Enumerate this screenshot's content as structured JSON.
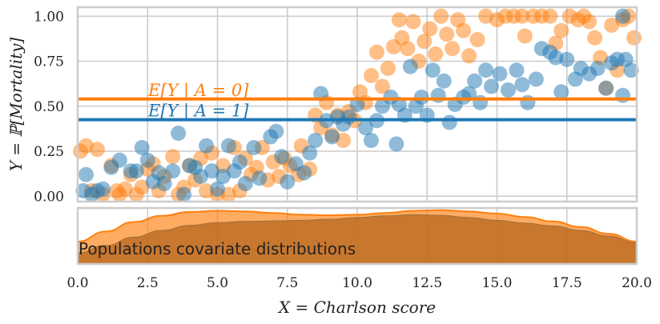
{
  "chart_data": [
    {
      "type": "scatter",
      "xlabel": "X = Charlson score",
      "ylabel": "Y = ℙ[Mortality]",
      "xlim": [
        0,
        20
      ],
      "ylim": [
        -0.03,
        1.05
      ],
      "xticks": [
        "0.0",
        "2.5",
        "5.0",
        "7.5",
        "10.0",
        "12.5",
        "15.0",
        "17.5",
        "20.0"
      ],
      "yticks": [
        "0.00",
        "0.25",
        "0.50",
        "0.75",
        "1.00"
      ],
      "grid": true,
      "series": [
        {
          "name": "A = 0",
          "color": "#ff7f0e",
          "points": [
            [
              0.1,
              0.25
            ],
            [
              0.3,
              0.28
            ],
            [
              0.5,
              0.03
            ],
            [
              0.7,
              0.26
            ],
            [
              0.9,
              0.01
            ],
            [
              1.2,
              0.17
            ],
            [
              1.4,
              0.03
            ],
            [
              1.5,
              0.01
            ],
            [
              1.7,
              0.04
            ],
            [
              1.9,
              0.12
            ],
            [
              2.1,
              0.01
            ],
            [
              2.3,
              0.05
            ],
            [
              2.5,
              0.15
            ],
            [
              2.7,
              0.18
            ],
            [
              2.9,
              0.03
            ],
            [
              3.1,
              0.11
            ],
            [
              3.4,
              0.22
            ],
            [
              3.6,
              0.01
            ],
            [
              3.8,
              0.05
            ],
            [
              4.0,
              0.17
            ],
            [
              4.2,
              0.09
            ],
            [
              4.4,
              0.21
            ],
            [
              4.6,
              0.03
            ],
            [
              4.8,
              0.24
            ],
            [
              5.0,
              0.01
            ],
            [
              5.2,
              0.17
            ],
            [
              5.4,
              0.01
            ],
            [
              5.6,
              0.27
            ],
            [
              5.8,
              0.03
            ],
            [
              6.0,
              0.21
            ],
            [
              6.2,
              0.12
            ],
            [
              6.4,
              0.16
            ],
            [
              6.6,
              0.27
            ],
            [
              6.8,
              0.09
            ],
            [
              7.0,
              0.19
            ],
            [
              7.2,
              0.11
            ],
            [
              7.4,
              0.21
            ],
            [
              7.6,
              0.17
            ],
            [
              7.9,
              0.12
            ],
            [
              8.0,
              0.28
            ],
            [
              8.3,
              0.15
            ],
            [
              8.5,
              0.45
            ],
            [
              8.7,
              0.38
            ],
            [
              8.9,
              0.52
            ],
            [
              9.1,
              0.34
            ],
            [
              9.3,
              0.45
            ],
            [
              9.5,
              0.31
            ],
            [
              9.7,
              0.47
            ],
            [
              9.9,
              0.42
            ],
            [
              10.1,
              0.58
            ],
            [
              10.3,
              0.52
            ],
            [
              10.5,
              0.67
            ],
            [
              10.7,
              0.8
            ],
            [
              10.9,
              0.61
            ],
            [
              11.1,
              0.71
            ],
            [
              11.3,
              0.83
            ],
            [
              11.5,
              0.98
            ],
            [
              11.6,
              0.88
            ],
            [
              11.8,
              0.82
            ],
            [
              12.0,
              0.97
            ],
            [
              12.2,
              0.75
            ],
            [
              12.4,
              0.86
            ],
            [
              12.6,
              0.93
            ],
            [
              12.8,
              0.79
            ],
            [
              13.0,
              1.0
            ],
            [
              13.2,
              0.9
            ],
            [
              13.4,
              0.82
            ],
            [
              13.6,
              0.98
            ],
            [
              13.8,
              0.92
            ],
            [
              14.0,
              0.78
            ],
            [
              14.3,
              0.87
            ],
            [
              14.6,
              1.0
            ],
            [
              15.0,
              0.98
            ],
            [
              15.3,
              1.0
            ],
            [
              15.6,
              1.0
            ],
            [
              15.9,
              1.0
            ],
            [
              16.0,
              0.89
            ],
            [
              16.3,
              1.0
            ],
            [
              16.6,
              1.0
            ],
            [
              16.9,
              1.0
            ],
            [
              17.1,
              0.85
            ],
            [
              17.3,
              0.92
            ],
            [
              17.6,
              1.0
            ],
            [
              17.9,
              0.98
            ],
            [
              18.1,
              1.0
            ],
            [
              18.3,
              0.97
            ],
            [
              18.5,
              0.88
            ],
            [
              18.7,
              0.77
            ],
            [
              18.9,
              0.6
            ],
            [
              19.1,
              0.95
            ],
            [
              19.3,
              0.7
            ],
            [
              19.5,
              0.98
            ],
            [
              19.7,
              1.0
            ],
            [
              19.9,
              0.88
            ]
          ]
        },
        {
          "name": "A = 1",
          "color": "#1f77b4",
          "points": [
            [
              0.2,
              0.03
            ],
            [
              0.3,
              0.12
            ],
            [
              0.5,
              0.01
            ],
            [
              0.7,
              0.03
            ],
            [
              0.9,
              0.04
            ],
            [
              1.2,
              0.16
            ],
            [
              1.5,
              0.2
            ],
            [
              1.9,
              0.14
            ],
            [
              2.1,
              0.14
            ],
            [
              2.3,
              0.27
            ],
            [
              2.5,
              0.2
            ],
            [
              2.7,
              0.08
            ],
            [
              2.9,
              0.13
            ],
            [
              3.1,
              0.07
            ],
            [
              3.4,
              0.14
            ],
            [
              3.6,
              0.35
            ],
            [
              3.8,
              0.01
            ],
            [
              4.0,
              0.17
            ],
            [
              4.2,
              0.16
            ],
            [
              4.4,
              0.11
            ],
            [
              4.6,
              0.28
            ],
            [
              4.8,
              0.14
            ],
            [
              5.0,
              0.04
            ],
            [
              5.2,
              0.11
            ],
            [
              5.4,
              0.28
            ],
            [
              5.6,
              0.14
            ],
            [
              5.8,
              0.19
            ],
            [
              6.0,
              0.07
            ],
            [
              6.3,
              0.27
            ],
            [
              6.5,
              0.1
            ],
            [
              6.9,
              0.33
            ],
            [
              7.1,
              0.36
            ],
            [
              7.3,
              0.22
            ],
            [
              7.5,
              0.08
            ],
            [
              7.8,
              0.18
            ],
            [
              8.1,
              0.13
            ],
            [
              8.3,
              0.24
            ],
            [
              8.5,
              0.31
            ],
            [
              8.7,
              0.57
            ],
            [
              8.9,
              0.42
            ],
            [
              9.1,
              0.33
            ],
            [
              9.3,
              0.44
            ],
            [
              9.5,
              0.4
            ],
            [
              9.7,
              0.44
            ],
            [
              10.0,
              0.51
            ],
            [
              10.3,
              0.38
            ],
            [
              10.5,
              0.31
            ],
            [
              10.7,
              0.42
            ],
            [
              10.9,
              0.5
            ],
            [
              11.2,
              0.55
            ],
            [
              11.4,
              0.29
            ],
            [
              11.5,
              0.51
            ],
            [
              11.7,
              0.45
            ],
            [
              11.9,
              0.72
            ],
            [
              12.1,
              0.5
            ],
            [
              12.3,
              0.55
            ],
            [
              12.5,
              0.45
            ],
            [
              12.7,
              0.7
            ],
            [
              12.9,
              0.56
            ],
            [
              13.1,
              0.64
            ],
            [
              13.3,
              0.41
            ],
            [
              13.5,
              0.51
            ],
            [
              13.8,
              0.55
            ],
            [
              14.0,
              0.57
            ],
            [
              14.2,
              0.64
            ],
            [
              14.4,
              0.52
            ],
            [
              14.6,
              0.7
            ],
            [
              14.8,
              0.61
            ],
            [
              15.1,
              0.68
            ],
            [
              15.4,
              0.59
            ],
            [
              15.7,
              0.7
            ],
            [
              15.9,
              0.62
            ],
            [
              16.1,
              0.52
            ],
            [
              16.4,
              0.65
            ],
            [
              16.6,
              0.82
            ],
            [
              16.9,
              0.8
            ],
            [
              17.1,
              0.77
            ],
            [
              17.3,
              0.58
            ],
            [
              17.5,
              0.76
            ],
            [
              17.8,
              0.65
            ],
            [
              18.0,
              0.71
            ],
            [
              18.3,
              0.68
            ],
            [
              18.6,
              0.71
            ],
            [
              18.9,
              0.6
            ],
            [
              19.1,
              0.74
            ],
            [
              19.3,
              0.76
            ],
            [
              19.5,
              0.56
            ],
            [
              19.6,
              0.76
            ],
            [
              19.8,
              0.7
            ],
            [
              19.5,
              1.0
            ]
          ]
        }
      ],
      "hlines": [
        {
          "label": "E[Y | A = 0]",
          "value": 0.54,
          "color": "#ff7f0e"
        },
        {
          "label": "E[Y | A = 1]",
          "value": 0.425,
          "color": "#1f77b4"
        }
      ]
    },
    {
      "type": "area",
      "label": "Populations covariate distributions",
      "xlim": [
        0,
        20
      ],
      "x": [
        0,
        1,
        2,
        3,
        4,
        5,
        6,
        7,
        8,
        9,
        10,
        11,
        12,
        13,
        14,
        15,
        16,
        17,
        18,
        19,
        20
      ],
      "series": [
        {
          "name": "A = 0",
          "color": "#ff7f0e",
          "values": [
            0.4,
            0.58,
            0.75,
            0.86,
            0.93,
            0.95,
            0.94,
            0.91,
            0.88,
            0.87,
            0.88,
            0.91,
            0.95,
            0.96,
            0.94,
            0.9,
            0.84,
            0.76,
            0.66,
            0.54,
            0.4
          ]
        },
        {
          "name": "A = 1",
          "color": "#b5651d",
          "values": [
            0.2,
            0.33,
            0.48,
            0.6,
            0.69,
            0.74,
            0.76,
            0.77,
            0.78,
            0.8,
            0.83,
            0.86,
            0.88,
            0.87,
            0.83,
            0.78,
            0.73,
            0.68,
            0.6,
            0.5,
            0.38
          ]
        }
      ]
    }
  ]
}
